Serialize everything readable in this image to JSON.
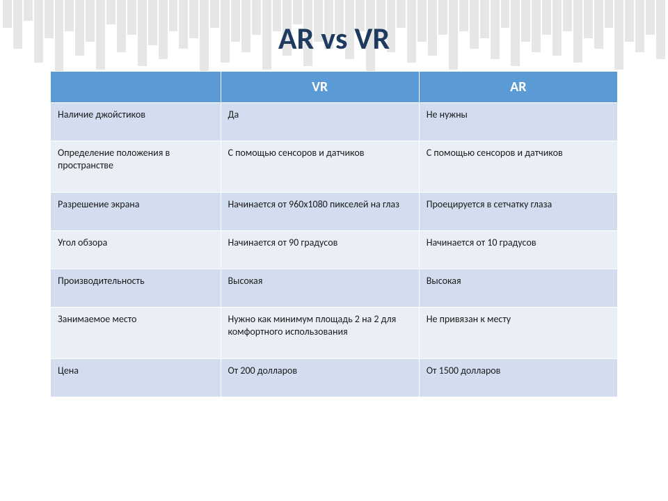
{
  "title": "AR vs VR",
  "table": {
    "type": "table",
    "header_bg": "#5b9bd5",
    "header_fg": "#ffffff",
    "band_a_bg": "#d2deef",
    "band_b_bg": "#eaeff7",
    "text_color": "#1a1a1a",
    "title_color": "#1f3a5f",
    "columns": [
      "",
      "VR",
      "AR"
    ],
    "rows": [
      [
        "Наличие джойстиков",
        "Да",
        "Не нужны"
      ],
      [
        "Определение положения в пространстве",
        "С помощью сенсоров и датчиков",
        "С помощью сенсоров и датчиков"
      ],
      [
        "Разрешение экрана",
        "Начинается от 960х1080 пикселей на глаз",
        "Проецируется в сетчатку глаза"
      ],
      [
        "Угол обзора",
        "Начинается от 90 градусов",
        "Начинается от 10 градусов"
      ],
      [
        "Производительность",
        "Высокая",
        "Высокая"
      ],
      [
        "Занимаемое место",
        "Нужно как минимум площадь 2 на 2 для комфортного использования",
        "Не привязан к месту"
      ],
      [
        "Цена",
        "От 200 долларов",
        "От 1500 долларов"
      ]
    ]
  },
  "bg_bars": {
    "color": "#b8b8b8",
    "heights": [
      40,
      70,
      30,
      90,
      55,
      110,
      45,
      80,
      60,
      100,
      35,
      75,
      50,
      95,
      65,
      85,
      45,
      70,
      55,
      120,
      40,
      90,
      60,
      75,
      50,
      100,
      45,
      80,
      35,
      95,
      60,
      70,
      50,
      85,
      45,
      110,
      55,
      75,
      40,
      90,
      60,
      80,
      50,
      100,
      45,
      70,
      55,
      85,
      40,
      95,
      60,
      75,
      50,
      80,
      45,
      90,
      55,
      70,
      40,
      100,
      60,
      75,
      50,
      85
    ]
  }
}
